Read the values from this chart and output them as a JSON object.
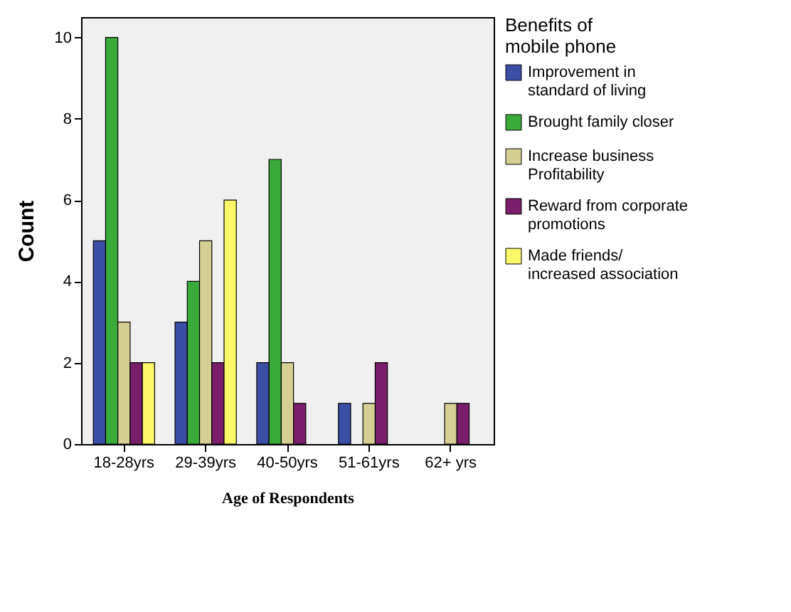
{
  "chart_data": {
    "type": "bar",
    "xlabel": "Age of Respondents",
    "ylabel": "Count",
    "legend_title": "Benefits of mobile phone",
    "categories": [
      "18-28yrs",
      "29-39yrs",
      "40-50yrs",
      "51-61yrs",
      "62+ yrs"
    ],
    "series": [
      {
        "name": "Improvement in standard of living",
        "color": "#3b4ea6",
        "values": [
          5,
          3,
          2,
          1,
          null
        ]
      },
      {
        "name": "Brought family closer",
        "color": "#3aaa3a",
        "values": [
          10,
          4,
          7,
          null,
          null
        ]
      },
      {
        "name": "Increase business Profitability",
        "color": "#d6cf94",
        "values": [
          3,
          5,
          2,
          1,
          1
        ]
      },
      {
        "name": "Reward from corporate promotions",
        "color": "#7a1e6b",
        "values": [
          2,
          2,
          1,
          2,
          1
        ]
      },
      {
        "name": "Made friends/ increased association",
        "color": "#fbf96a",
        "values": [
          2,
          6,
          null,
          null,
          null
        ]
      }
    ],
    "ylim": [
      0,
      10.5
    ],
    "yticks": [
      0,
      2,
      4,
      6,
      8,
      10
    ],
    "grid": false,
    "legend": "right"
  }
}
